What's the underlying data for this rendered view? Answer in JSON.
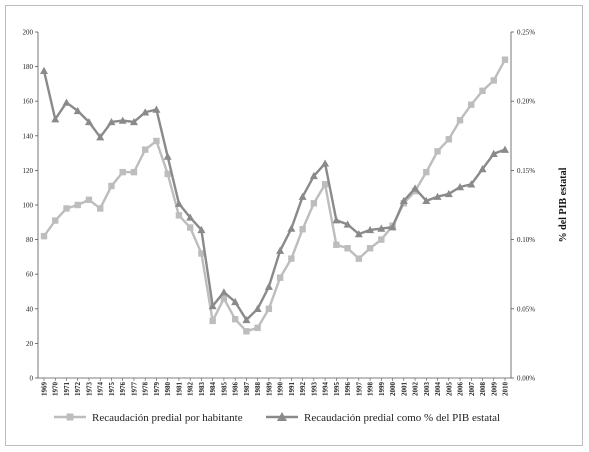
{
  "chart_data": {
    "type": "line",
    "x": [
      "1969",
      "1970",
      "1971",
      "1972",
      "1973",
      "1974",
      "1975",
      "1976",
      "1977",
      "1978",
      "1979",
      "1980",
      "1981",
      "1982",
      "1983",
      "1984",
      "1985",
      "1986",
      "1987",
      "1988",
      "1989",
      "1990",
      "1991",
      "1992",
      "1993",
      "1994",
      "1995",
      "1996",
      "1997",
      "1998",
      "1999",
      "2000",
      "2001",
      "2002",
      "2003",
      "2004",
      "2005",
      "2006",
      "2007",
      "2008",
      "2009",
      "2010"
    ],
    "y_left_ticks": [
      "0",
      "20",
      "40",
      "60",
      "80",
      "100",
      "120",
      "140",
      "160",
      "180",
      "200"
    ],
    "y_left_range": [
      0,
      200
    ],
    "y_right_ticks": [
      "0.00%",
      "0.05%",
      "0.10%",
      "0.15%",
      "0.20%",
      "0.25%"
    ],
    "y_right_range": [
      0,
      0.25
    ],
    "ylabel_right": "% del PIB estatal",
    "grid": false,
    "legend_position": "bottom",
    "series": [
      {
        "name": "Recaudación predial por habitante",
        "axis": "left",
        "color": "#bdbdbd",
        "marker": "square",
        "values": [
          82,
          91,
          98,
          100,
          103,
          98,
          111,
          119,
          119,
          132,
          137,
          118,
          94,
          87,
          72,
          33,
          46,
          34,
          27,
          29,
          40,
          58,
          69,
          86,
          101,
          112,
          77,
          75,
          69,
          75,
          80,
          88,
          101,
          108,
          119,
          131,
          138,
          149,
          158,
          166,
          172,
          184
        ]
      },
      {
        "name": "Recaudación predial como % del PIB estatal",
        "axis": "right",
        "color": "#8a8a8a",
        "marker": "triangle",
        "values": [
          0.222,
          0.187,
          0.199,
          0.193,
          0.185,
          0.174,
          0.185,
          0.186,
          0.185,
          0.192,
          0.194,
          0.16,
          0.126,
          0.116,
          0.107,
          0.052,
          0.062,
          0.055,
          0.042,
          0.05,
          0.066,
          0.092,
          0.108,
          0.131,
          0.146,
          0.155,
          0.114,
          0.111,
          0.104,
          0.107,
          0.108,
          0.109,
          0.128,
          0.137,
          0.128,
          0.131,
          0.133,
          0.138,
          0.14,
          0.151,
          0.162,
          0.165
        ]
      }
    ]
  }
}
